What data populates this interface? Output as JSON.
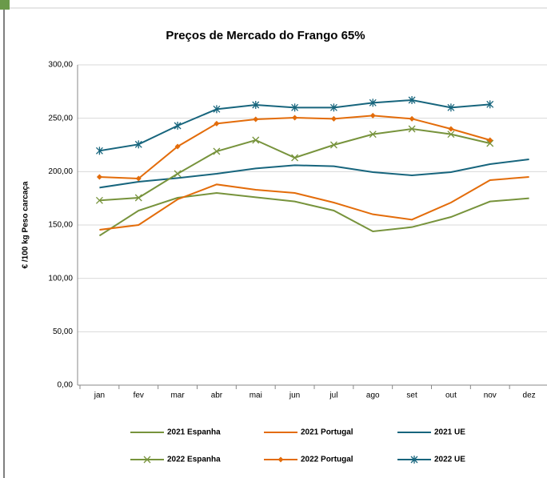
{
  "chart_data": {
    "type": "line",
    "title": "Preços de Mercado do Frango 65%",
    "y_label": "€ /100 kg Peso carcaça",
    "categories": [
      "jan",
      "fev",
      "mar",
      "abr",
      "mai",
      "jun",
      "jul",
      "ago",
      "set",
      "out",
      "nov",
      "dez"
    ],
    "ylim": [
      0,
      300
    ],
    "yticks": [
      {
        "value": 0,
        "label": "0,00"
      },
      {
        "value": 50,
        "label": "50,00"
      },
      {
        "value": 100,
        "label": "100,00"
      },
      {
        "value": 150,
        "label": "150,00"
      },
      {
        "value": 200,
        "label": "200,00"
      },
      {
        "value": 250,
        "label": "250,00"
      },
      {
        "value": 300,
        "label": "300,00"
      }
    ],
    "grid": true,
    "series": [
      {
        "name": "2021 Espanha",
        "color": "#77933c",
        "marker": "none",
        "values": [
          140,
          163.5,
          175.5,
          180,
          176,
          172,
          163.5,
          144,
          148,
          157.5,
          172,
          175
        ]
      },
      {
        "name": "2021 Portugal",
        "color": "#e36c0a",
        "marker": "none",
        "values": [
          145.5,
          150,
          174,
          188,
          183,
          180,
          171,
          160,
          155,
          171,
          192,
          195
        ]
      },
      {
        "name": "2021 UE",
        "color": "#17657d",
        "marker": "none",
        "values": [
          185,
          190.5,
          194,
          198,
          203,
          206,
          205,
          199.5,
          196.5,
          199.5,
          207,
          211.5
        ]
      },
      {
        "name": "2022 Espanha",
        "color": "#77933c",
        "marker": "x",
        "values": [
          173,
          175.5,
          198,
          219,
          229.5,
          213,
          225,
          235,
          240,
          235,
          226.5,
          null
        ]
      },
      {
        "name": "2022 Portugal",
        "color": "#e36c0a",
        "marker": "diamond",
        "values": [
          195,
          193.5,
          223.5,
          245,
          249,
          250.5,
          249.5,
          252.5,
          249.5,
          240,
          229.5,
          null
        ]
      },
      {
        "name": "2022 UE",
        "color": "#17657d",
        "marker": "asterisk",
        "values": [
          219.5,
          225.5,
          243,
          258.5,
          262.5,
          260,
          260,
          264.5,
          267,
          260,
          263,
          null
        ]
      }
    ]
  }
}
